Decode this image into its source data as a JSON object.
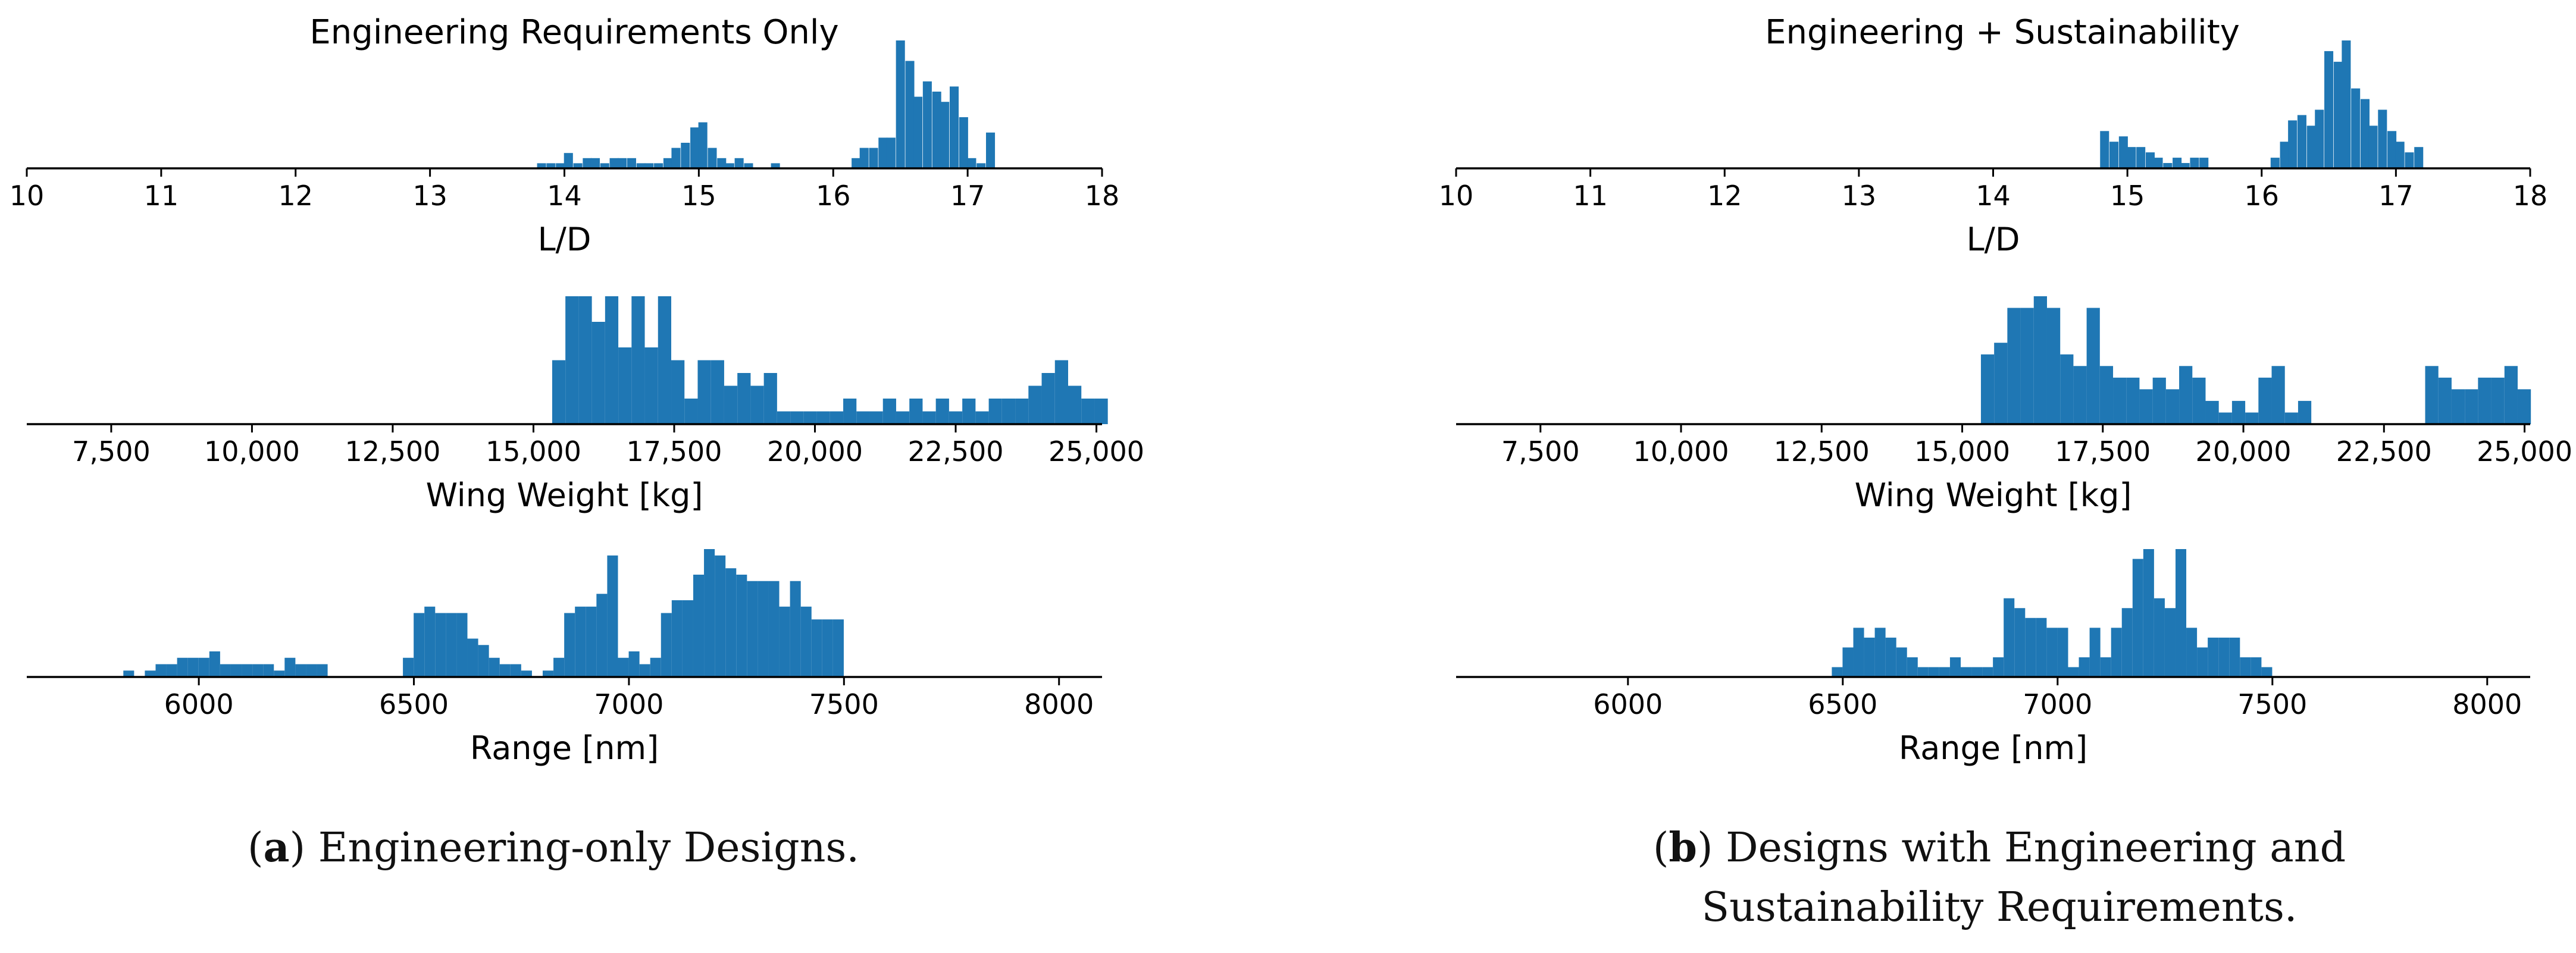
{
  "figure": {
    "bar_color": "#1f77b4",
    "captions": [
      {
        "letter": "a",
        "open": "(",
        "close": ")",
        "text": " Engineering-only Designs."
      },
      {
        "letter": "b",
        "open": "(",
        "close": ")",
        "text": " Designs with Engineering and",
        "text2": "Sustainability Requirements."
      }
    ]
  },
  "chart_data": [
    {
      "type": "bar",
      "panel": "a",
      "title": "Engineering Requirements Only",
      "xlabel": "L/D",
      "xlim": [
        10,
        18
      ],
      "bin_width": 0.0667,
      "xticks": [
        10,
        11,
        12,
        13,
        14,
        15,
        16,
        17,
        18
      ],
      "xtick_labels": [
        "10",
        "11",
        "12",
        "13",
        "14",
        "15",
        "16",
        "17",
        "18"
      ],
      "bins": [
        [
          13.83,
          1
        ],
        [
          13.9,
          1
        ],
        [
          13.97,
          1
        ],
        [
          14.03,
          3
        ],
        [
          14.1,
          1
        ],
        [
          14.17,
          2
        ],
        [
          14.23,
          2
        ],
        [
          14.3,
          1
        ],
        [
          14.37,
          2
        ],
        [
          14.43,
          2
        ],
        [
          14.5,
          2
        ],
        [
          14.57,
          1
        ],
        [
          14.63,
          1
        ],
        [
          14.7,
          1
        ],
        [
          14.77,
          2
        ],
        [
          14.83,
          4
        ],
        [
          14.9,
          5
        ],
        [
          14.97,
          8
        ],
        [
          15.03,
          9
        ],
        [
          15.1,
          4
        ],
        [
          15.17,
          2
        ],
        [
          15.23,
          1
        ],
        [
          15.3,
          2
        ],
        [
          15.37,
          1
        ],
        [
          15.57,
          1
        ],
        [
          16.17,
          2
        ],
        [
          16.23,
          4
        ],
        [
          16.3,
          4
        ],
        [
          16.37,
          6
        ],
        [
          16.43,
          6
        ],
        [
          16.5,
          25
        ],
        [
          16.57,
          21
        ],
        [
          16.63,
          14
        ],
        [
          16.7,
          17
        ],
        [
          16.77,
          15
        ],
        [
          16.83,
          13
        ],
        [
          16.9,
          16
        ],
        [
          16.97,
          10
        ],
        [
          17.03,
          2
        ],
        [
          17.1,
          1
        ],
        [
          17.17,
          7
        ]
      ]
    },
    {
      "type": "bar",
      "panel": "a",
      "xlabel": "Wing Weight [kg]",
      "xlim": [
        6000,
        25100
      ],
      "bin_width": 235,
      "xticks": [
        7500,
        10000,
        12500,
        15000,
        17500,
        20000,
        22500,
        25000
      ],
      "xtick_labels": [
        "7,500",
        "10,000",
        "12,500",
        "15,000",
        "17,500",
        "20,000",
        "22,500",
        "25,000"
      ],
      "bins": [
        [
          15450,
          5
        ],
        [
          15685,
          10
        ],
        [
          15920,
          10
        ],
        [
          16155,
          8
        ],
        [
          16390,
          10
        ],
        [
          16625,
          6
        ],
        [
          16860,
          10
        ],
        [
          17095,
          6
        ],
        [
          17330,
          10
        ],
        [
          17565,
          5
        ],
        [
          17800,
          2
        ],
        [
          18035,
          5
        ],
        [
          18270,
          5
        ],
        [
          18505,
          3
        ],
        [
          18740,
          4
        ],
        [
          18975,
          3
        ],
        [
          19210,
          4
        ],
        [
          19445,
          1
        ],
        [
          19680,
          1
        ],
        [
          19915,
          1
        ],
        [
          20150,
          1
        ],
        [
          20385,
          1
        ],
        [
          20620,
          2
        ],
        [
          20855,
          1
        ],
        [
          21090,
          1
        ],
        [
          21325,
          2
        ],
        [
          21560,
          1
        ],
        [
          21795,
          2
        ],
        [
          22030,
          1
        ],
        [
          22265,
          2
        ],
        [
          22500,
          1
        ],
        [
          22735,
          2
        ],
        [
          22970,
          1
        ],
        [
          23205,
          2
        ],
        [
          23440,
          2
        ],
        [
          23675,
          2
        ],
        [
          23910,
          3
        ],
        [
          24145,
          4
        ],
        [
          24380,
          5
        ],
        [
          24615,
          3
        ],
        [
          24850,
          2
        ],
        [
          25085,
          2
        ]
      ]
    },
    {
      "type": "bar",
      "panel": "a",
      "xlabel": "Range [nm]",
      "xlim": [
        5600,
        8100
      ],
      "bin_width": 25,
      "xticks": [
        6000,
        6500,
        7000,
        7500,
        8000
      ],
      "xtick_labels": [
        "6000",
        "6500",
        "7000",
        "7500",
        "8000"
      ],
      "bins": [
        [
          5837,
          1
        ],
        [
          5887,
          1
        ],
        [
          5912,
          2
        ],
        [
          5937,
          2
        ],
        [
          5962,
          3
        ],
        [
          5987,
          3
        ],
        [
          6012,
          3
        ],
        [
          6037,
          4
        ],
        [
          6062,
          2
        ],
        [
          6087,
          2
        ],
        [
          6112,
          2
        ],
        [
          6137,
          2
        ],
        [
          6162,
          2
        ],
        [
          6187,
          1
        ],
        [
          6212,
          3
        ],
        [
          6237,
          2
        ],
        [
          6262,
          2
        ],
        [
          6287,
          2
        ],
        [
          6487,
          3
        ],
        [
          6512,
          10
        ],
        [
          6537,
          11
        ],
        [
          6562,
          10
        ],
        [
          6587,
          10
        ],
        [
          6612,
          10
        ],
        [
          6637,
          6
        ],
        [
          6662,
          5
        ],
        [
          6687,
          3
        ],
        [
          6712,
          2
        ],
        [
          6737,
          2
        ],
        [
          6762,
          1
        ],
        [
          6812,
          1
        ],
        [
          6837,
          3
        ],
        [
          6862,
          10
        ],
        [
          6887,
          11
        ],
        [
          6912,
          11
        ],
        [
          6937,
          13
        ],
        [
          6962,
          19
        ],
        [
          6987,
          3
        ],
        [
          7012,
          4
        ],
        [
          7037,
          2
        ],
        [
          7062,
          3
        ],
        [
          7087,
          10
        ],
        [
          7112,
          12
        ],
        [
          7137,
          12
        ],
        [
          7162,
          16
        ],
        [
          7187,
          20
        ],
        [
          7212,
          19
        ],
        [
          7237,
          17
        ],
        [
          7262,
          16
        ],
        [
          7287,
          15
        ],
        [
          7312,
          15
        ],
        [
          7337,
          15
        ],
        [
          7362,
          11
        ],
        [
          7387,
          15
        ],
        [
          7412,
          11
        ],
        [
          7437,
          9
        ],
        [
          7462,
          9
        ],
        [
          7487,
          9
        ]
      ]
    },
    {
      "type": "bar",
      "panel": "b",
      "title": "Engineering + Sustainability",
      "xlabel": "L/D",
      "xlim": [
        10,
        18
      ],
      "bin_width": 0.0667,
      "xticks": [
        10,
        11,
        12,
        13,
        14,
        15,
        16,
        17,
        18
      ],
      "xtick_labels": [
        "10",
        "11",
        "12",
        "13",
        "14",
        "15",
        "16",
        "17",
        "18"
      ],
      "bins": [
        [
          14.83,
          7
        ],
        [
          14.9,
          5
        ],
        [
          14.97,
          6
        ],
        [
          15.03,
          4
        ],
        [
          15.1,
          4
        ],
        [
          15.17,
          3
        ],
        [
          15.23,
          2
        ],
        [
          15.3,
          1
        ],
        [
          15.37,
          2
        ],
        [
          15.43,
          1
        ],
        [
          15.5,
          2
        ],
        [
          15.57,
          2
        ],
        [
          16.1,
          2
        ],
        [
          16.17,
          5
        ],
        [
          16.23,
          9
        ],
        [
          16.3,
          10
        ],
        [
          16.37,
          8
        ],
        [
          16.43,
          11
        ],
        [
          16.5,
          22
        ],
        [
          16.57,
          20
        ],
        [
          16.63,
          24
        ],
        [
          16.7,
          15
        ],
        [
          16.77,
          13
        ],
        [
          16.83,
          8
        ],
        [
          16.9,
          11
        ],
        [
          16.97,
          7
        ],
        [
          17.03,
          5
        ],
        [
          17.1,
          3
        ],
        [
          17.17,
          4
        ]
      ]
    },
    {
      "type": "bar",
      "panel": "b",
      "xlabel": "Wing Weight [kg]",
      "xlim": [
        6000,
        25100
      ],
      "bin_width": 235,
      "xticks": [
        7500,
        10000,
        12500,
        15000,
        17500,
        20000,
        22500,
        25000
      ],
      "xtick_labels": [
        "7,500",
        "10,000",
        "12,500",
        "15,000",
        "17,500",
        "20,000",
        "22,500",
        "25,000"
      ],
      "bins": [
        [
          15450,
          6
        ],
        [
          15685,
          7
        ],
        [
          15920,
          10
        ],
        [
          16155,
          10
        ],
        [
          16390,
          11
        ],
        [
          16625,
          10
        ],
        [
          16860,
          6
        ],
        [
          17095,
          5
        ],
        [
          17330,
          10
        ],
        [
          17565,
          5
        ],
        [
          17800,
          4
        ],
        [
          18035,
          4
        ],
        [
          18270,
          3
        ],
        [
          18505,
          4
        ],
        [
          18740,
          3
        ],
        [
          18975,
          5
        ],
        [
          19210,
          4
        ],
        [
          19445,
          2
        ],
        [
          19680,
          1
        ],
        [
          19915,
          2
        ],
        [
          20150,
          1
        ],
        [
          20385,
          4
        ],
        [
          20620,
          5
        ],
        [
          20855,
          1
        ],
        [
          21090,
          2
        ],
        [
          23350,
          5
        ],
        [
          23585,
          4
        ],
        [
          23820,
          3
        ],
        [
          24055,
          3
        ],
        [
          24290,
          4
        ],
        [
          24525,
          4
        ],
        [
          24760,
          5
        ],
        [
          24995,
          3
        ]
      ]
    },
    {
      "type": "bar",
      "panel": "b",
      "xlabel": "Range [nm]",
      "xlim": [
        5600,
        8100
      ],
      "bin_width": 25,
      "xticks": [
        6000,
        6500,
        7000,
        7500,
        8000
      ],
      "xtick_labels": [
        "6000",
        "6500",
        "7000",
        "7500",
        "8000"
      ],
      "bins": [
        [
          6487,
          1
        ],
        [
          6512,
          3
        ],
        [
          6537,
          5
        ],
        [
          6562,
          4
        ],
        [
          6587,
          5
        ],
        [
          6612,
          4
        ],
        [
          6637,
          3
        ],
        [
          6662,
          2
        ],
        [
          6687,
          1
        ],
        [
          6712,
          1
        ],
        [
          6737,
          1
        ],
        [
          6762,
          2
        ],
        [
          6787,
          1
        ],
        [
          6812,
          1
        ],
        [
          6837,
          1
        ],
        [
          6862,
          2
        ],
        [
          6887,
          8
        ],
        [
          6912,
          7
        ],
        [
          6937,
          6
        ],
        [
          6962,
          6
        ],
        [
          6987,
          5
        ],
        [
          7012,
          5
        ],
        [
          7037,
          1
        ],
        [
          7062,
          2
        ],
        [
          7087,
          5
        ],
        [
          7112,
          2
        ],
        [
          7137,
          5
        ],
        [
          7162,
          7
        ],
        [
          7187,
          12
        ],
        [
          7212,
          13
        ],
        [
          7237,
          8
        ],
        [
          7262,
          7
        ],
        [
          7287,
          13
        ],
        [
          7312,
          5
        ],
        [
          7337,
          3
        ],
        [
          7362,
          4
        ],
        [
          7387,
          4
        ],
        [
          7412,
          4
        ],
        [
          7437,
          2
        ],
        [
          7462,
          2
        ],
        [
          7487,
          1
        ]
      ]
    }
  ]
}
